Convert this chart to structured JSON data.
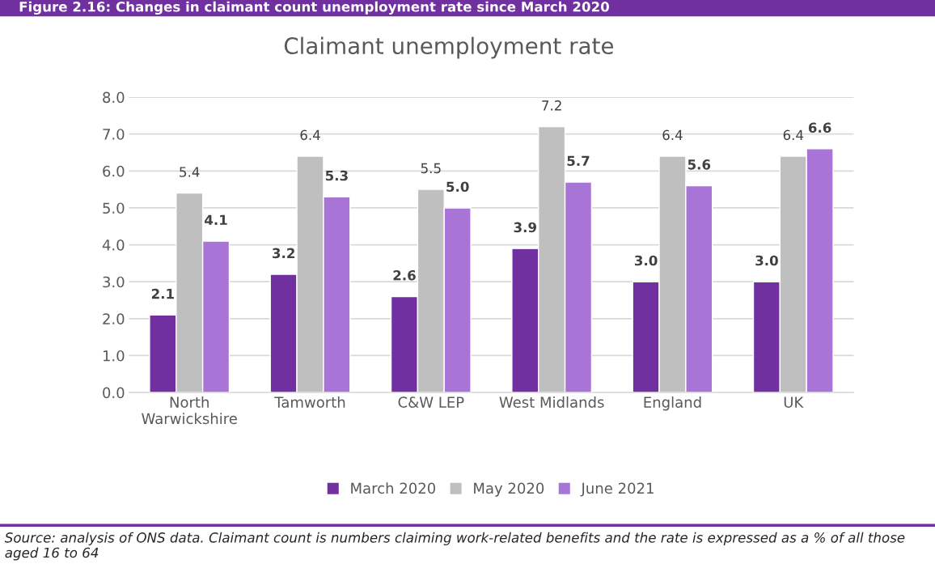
{
  "chart_data": {
    "type": "bar",
    "title": "Claimant unemployment rate",
    "categories": [
      "North\nWarwickshire",
      "Tamworth",
      "C&W LEP",
      "West Midlands",
      "England",
      "UK"
    ],
    "series": [
      {
        "name": "March 2020",
        "color": "#7030a0",
        "values": [
          2.1,
          3.2,
          2.6,
          3.9,
          3.0,
          3.0
        ],
        "value_labels": [
          "2.1",
          "3.2",
          "2.6",
          "3.9",
          "3.0",
          "3.0"
        ]
      },
      {
        "name": "May 2020",
        "color": "#bfbfbf",
        "values": [
          5.4,
          6.4,
          5.5,
          7.2,
          6.4,
          6.4
        ],
        "value_labels": [
          "5.4",
          "6.4",
          "5.5",
          "7.2",
          "6.4",
          "6.4"
        ]
      },
      {
        "name": "June 2021",
        "color": "#a875d6",
        "values": [
          4.1,
          5.3,
          5.0,
          5.7,
          5.6,
          6.6
        ],
        "value_labels": [
          "4.1",
          "5.3",
          "5.0",
          "5.7",
          "5.6",
          "6.6"
        ]
      }
    ],
    "ylim": [
      0,
      8
    ],
    "yticks": [
      {
        "value": 0,
        "label": "0.0"
      },
      {
        "value": 1,
        "label": "1.0"
      },
      {
        "value": 2,
        "label": "2.0"
      },
      {
        "value": 3,
        "label": "3.0"
      },
      {
        "value": 4,
        "label": "4.0"
      },
      {
        "value": 5,
        "label": "5.0"
      },
      {
        "value": 6,
        "label": "6.0"
      },
      {
        "value": 7,
        "label": "7.0"
      },
      {
        "value": 8,
        "label": "8.0"
      }
    ],
    "grid": "y",
    "legend": "bottom",
    "annotations": [
      "Figure 2.16: Changes in claimant count unemployment rate since March 2020",
      "Source: analysis of ONS data. Claimant count is numbers claiming work-related benefits and the rate is expressed as a % of all those aged 16 to 64"
    ]
  }
}
